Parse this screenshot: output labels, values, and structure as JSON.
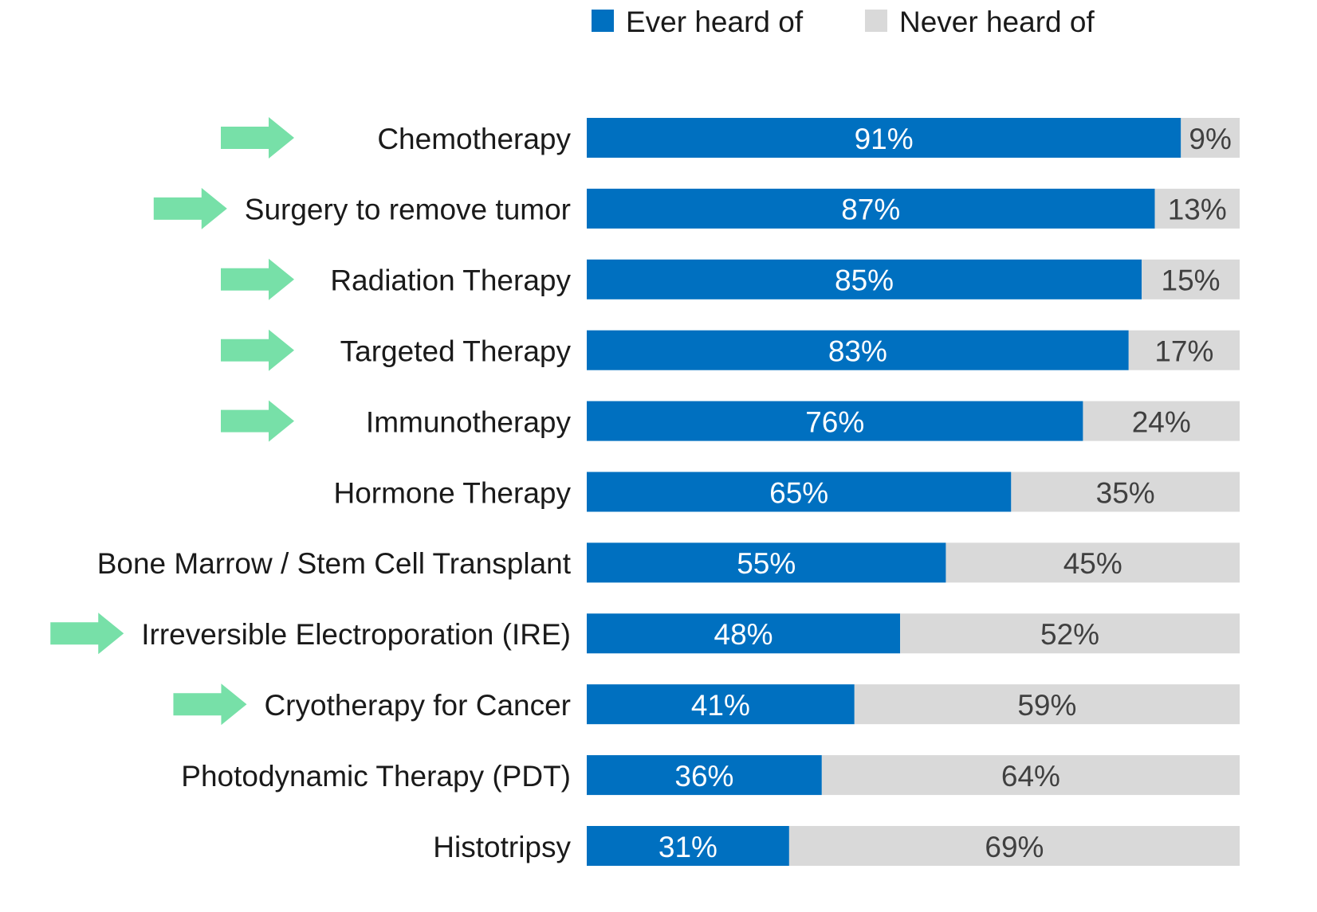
{
  "chart_data": {
    "type": "stacked-barh",
    "categories": [
      "Chemotherapy",
      "Surgery to remove tumor",
      "Radiation Therapy",
      "Targeted Therapy",
      "Immunotherapy",
      "Hormone Therapy",
      "Bone Marrow / Stem Cell Transplant",
      "Irreversible Electroporation (IRE)",
      "Cryotherapy for Cancer",
      "Photodynamic Therapy (PDT)",
      "Histotripsy"
    ],
    "series": [
      {
        "name": "Ever heard of",
        "color": "#0070c0",
        "label_color": "#ffffff",
        "values": [
          91,
          87,
          85,
          83,
          76,
          65,
          55,
          48,
          41,
          36,
          31
        ],
        "value_labels": [
          "91%",
          "87%",
          "85%",
          "83%",
          "76%",
          "65%",
          "55%",
          "48%",
          "41%",
          "36%",
          "31%"
        ]
      },
      {
        "name": "Never heard of",
        "color": "#d9d9d9",
        "label_color": "#404040",
        "values": [
          9,
          13,
          15,
          17,
          24,
          35,
          45,
          52,
          59,
          64,
          69
        ],
        "value_labels": [
          "9%",
          "13%",
          "15%",
          "17%",
          "24%",
          "35%",
          "45%",
          "52%",
          "59%",
          "64%",
          "69%"
        ]
      }
    ],
    "xlim": [
      0,
      100
    ],
    "arrows": [
      true,
      true,
      true,
      true,
      true,
      false,
      false,
      true,
      true,
      false,
      false
    ],
    "arrow_color": "#77e0a8"
  }
}
